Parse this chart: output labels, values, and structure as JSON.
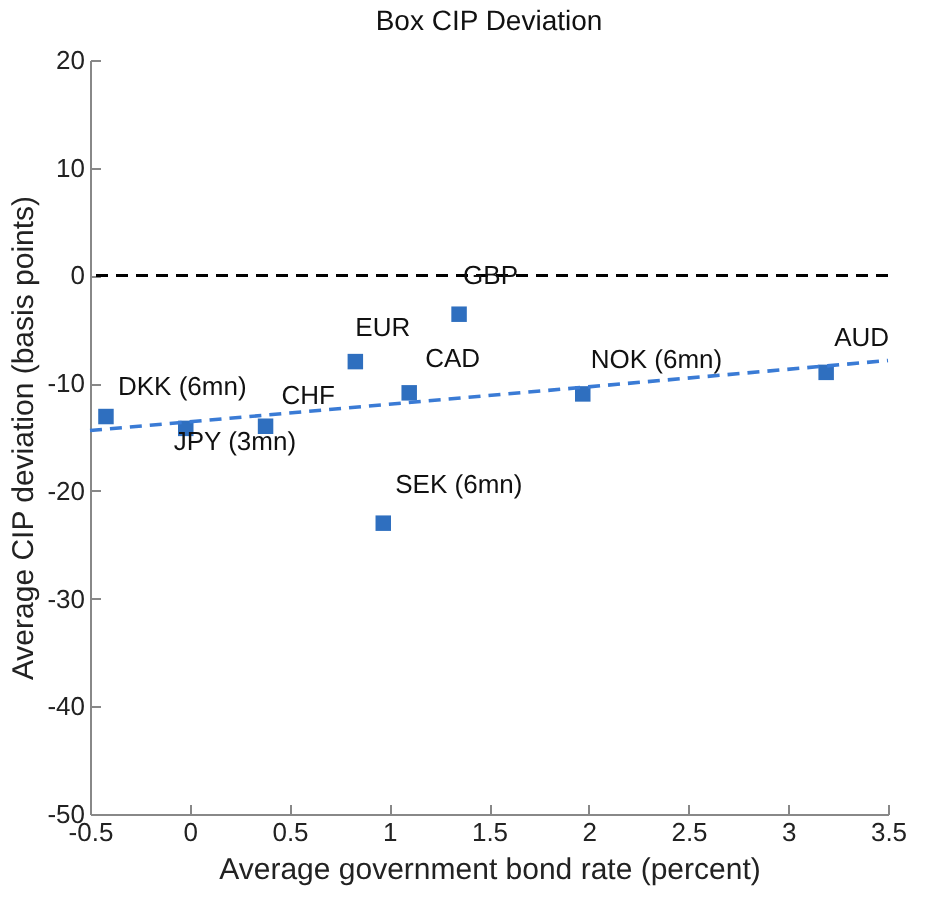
{
  "chart_data": {
    "type": "scatter",
    "title": "Box CIP Deviation",
    "xlabel": "Average government bond rate (percent)",
    "ylabel": "Average CIP deviation (basis points)",
    "xlim": [
      -0.5,
      3.5
    ],
    "xticks": [
      -0.5,
      0,
      0.5,
      1,
      1.5,
      2,
      2.5,
      3,
      3.5
    ],
    "ylim": [
      -50,
      20
    ],
    "yticks": [
      -50,
      -40,
      -30,
      -20,
      -10,
      0,
      10,
      20
    ],
    "series": [
      {
        "color": "#2f6fbf",
        "marker": "square",
        "x": [
          -0.42,
          -0.02,
          0.38,
          0.83,
          1.1,
          1.35,
          0.97,
          1.97,
          3.19
        ],
        "values": [
          -13.1,
          -14.2,
          -14,
          -8,
          -10.9,
          -3.6,
          -23,
          -11,
          -9
        ]
      },
      {
        "type": "line",
        "color": "#3a7bd5",
        "line_style": "dashed",
        "x": [
          -0.5,
          3.5
        ],
        "values": [
          -14.4,
          -7.9
        ]
      }
    ],
    "ref_lines": [
      {
        "axis": "y",
        "value": 0,
        "color": "#000000",
        "line_style": "dashed"
      }
    ],
    "annotations": [
      {
        "text": "DKK (6mn)",
        "x": -0.42,
        "y": -13.1
      },
      {
        "text": "JPY (3mn)",
        "x": -0.02,
        "y": -14.2
      },
      {
        "text": "CHF",
        "x": 0.38,
        "y": -14
      },
      {
        "text": "EUR",
        "x": 0.83,
        "y": -8
      },
      {
        "text": "CAD",
        "x": 1.1,
        "y": -10.9
      },
      {
        "text": "GBP",
        "x": 1.35,
        "y": -3.6
      },
      {
        "text": "SEK (6mn)",
        "x": 0.97,
        "y": -23
      },
      {
        "text": "NOK (6mn)",
        "x": 1.97,
        "y": -11
      },
      {
        "text": "AUD",
        "x": 3.19,
        "y": -9
      }
    ]
  }
}
